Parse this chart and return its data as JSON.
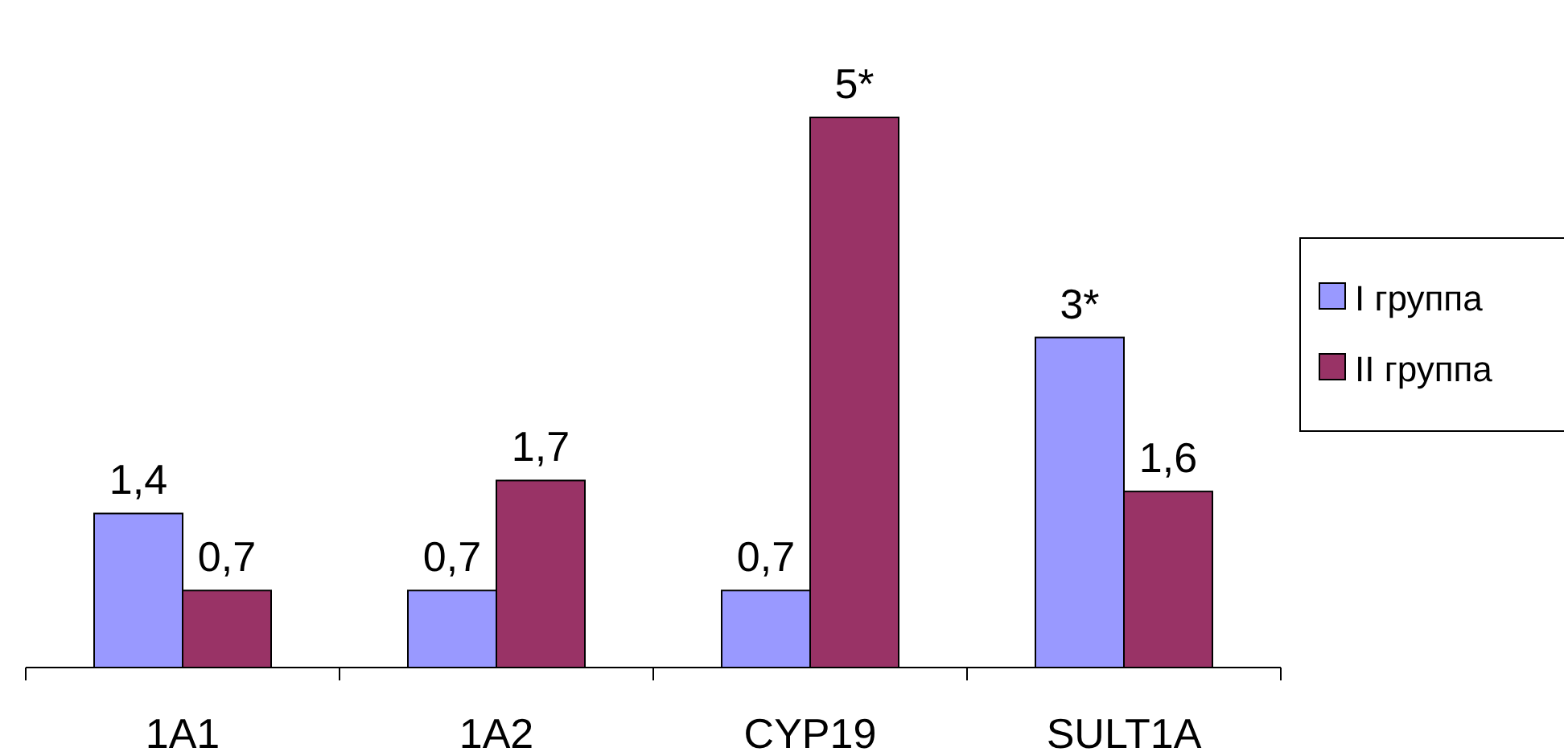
{
  "chart_data": {
    "type": "bar",
    "categories": [
      "1A1",
      "1A2",
      "CYP19",
      "SULT1A"
    ],
    "series": [
      {
        "name": "I группа",
        "color": "#9999ff",
        "values": [
          1.4,
          0.7,
          0.7,
          3
        ],
        "value_labels": [
          "1,4",
          "0,7",
          "0,7",
          "3*"
        ]
      },
      {
        "name": "II группа",
        "color": "#993366",
        "values": [
          0.7,
          1.7,
          5,
          1.6
        ],
        "value_labels": [
          "0,7",
          "1,7",
          "5*",
          "1,6"
        ]
      }
    ],
    "legend": "right"
  }
}
